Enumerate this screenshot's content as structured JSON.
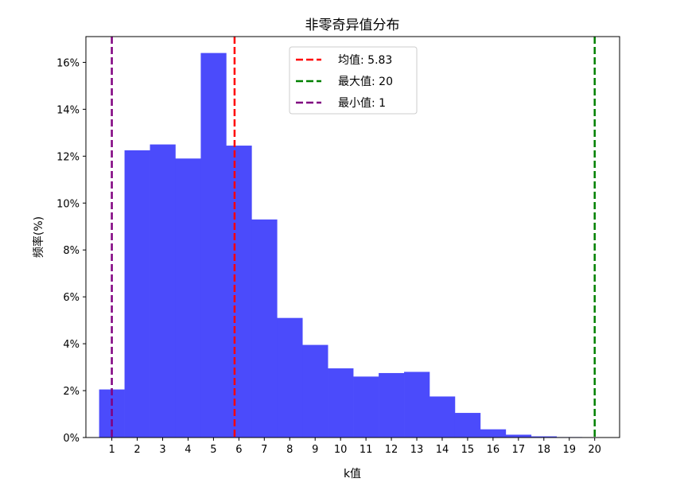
{
  "chart_data": {
    "type": "bar",
    "title": "非零奇异值分布",
    "xlabel": "k值",
    "ylabel": "频率(%)",
    "x": [
      1,
      2,
      3,
      4,
      5,
      6,
      7,
      8,
      9,
      10,
      11,
      12,
      13,
      14,
      15,
      16,
      17,
      18,
      19,
      20
    ],
    "xtick_labels": [
      "1",
      "2",
      "3",
      "4",
      "5",
      "6",
      "7",
      "8",
      "9",
      "10",
      "11",
      "12",
      "13",
      "14",
      "15",
      "16",
      "17",
      "18",
      "19",
      "20"
    ],
    "values": [
      2.05,
      12.25,
      12.5,
      11.9,
      16.4,
      12.45,
      9.3,
      5.1,
      3.95,
      2.95,
      2.6,
      2.75,
      2.8,
      1.75,
      1.05,
      0.35,
      0.12,
      0.05,
      0.02,
      0
    ],
    "ylim": [
      0,
      17.1
    ],
    "xlim": [
      -0.02,
      20.98
    ],
    "yticks": [
      0,
      2,
      4,
      6,
      8,
      10,
      12,
      14,
      16
    ],
    "ytick_labels": [
      "0%",
      "2%",
      "4%",
      "6%",
      "8%",
      "10%",
      "12%",
      "14%",
      "16%"
    ],
    "bar_color": "#4b4bfb",
    "grid": false,
    "legend_position": "upper center",
    "vlines": [
      {
        "label": "均值: 5.83",
        "x": 5.83,
        "color": "#ff0000"
      },
      {
        "label": "最大值: 20",
        "x": 20,
        "color": "#008000"
      },
      {
        "label": "最小值: 1",
        "x": 1,
        "color": "#800080"
      }
    ]
  }
}
